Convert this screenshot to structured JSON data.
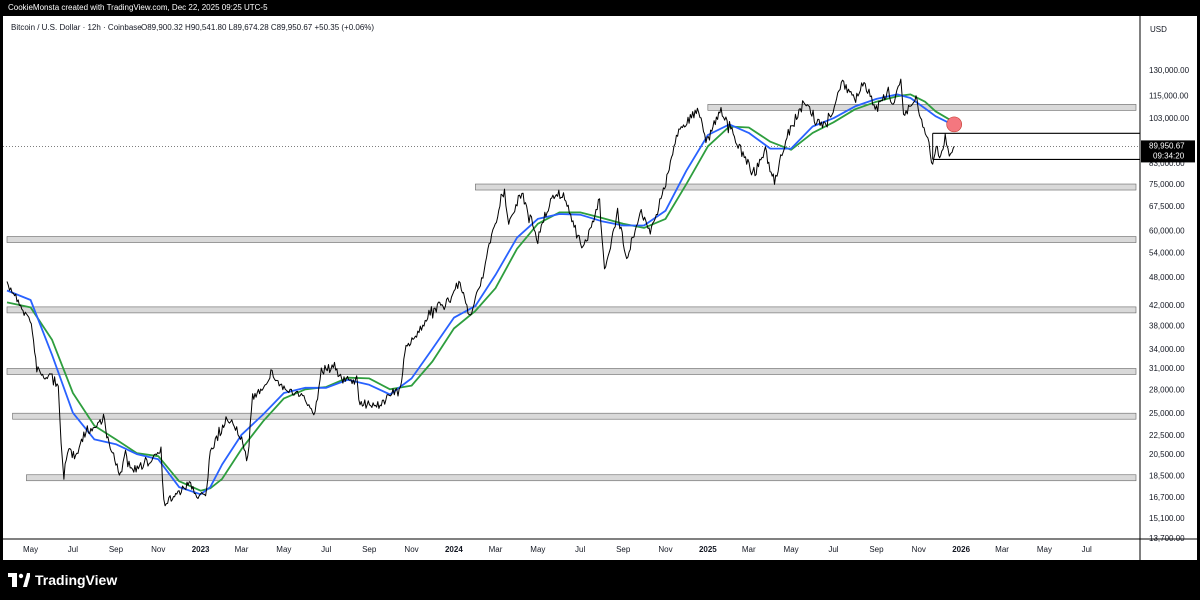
{
  "header": {
    "attribution": "CookieMonsta created with TradingView.com, Dec 22, 2025 09:25 UTC-5"
  },
  "legend": {
    "symbol_line": "Bitcoin / U.S. Dollar · 12h · Coinbase",
    "ohlc_line": "O89,900.32  H90,541.80  L89,674.28  C89,950.67  +50.35 (+0.06%)"
  },
  "price_axis": {
    "currency": "USD",
    "current_price_label": "89,950.67",
    "countdown_label": "09:34:20"
  },
  "footer": {
    "brand": "TradingView",
    "logo_icon": "tradingview-logo-icon"
  },
  "colors": {
    "price": "#000000",
    "ma_fast": "#2962ff",
    "ma_slow": "#2e9e3e",
    "zone_fill": "#d9d9d9",
    "marker": "#f4777f"
  },
  "chart_data": {
    "type": "line",
    "scale": "log",
    "ylim": [
      13700,
      150000
    ],
    "y_ticks": [
      {
        "label": "130,000.00",
        "value": 130000
      },
      {
        "label": "115,000.00",
        "value": 115000
      },
      {
        "label": "103,000.00",
        "value": 103000
      },
      {
        "label": "83,000.00",
        "value": 83000
      },
      {
        "label": "75,000.00",
        "value": 75000
      },
      {
        "label": "67,500.00",
        "value": 67500
      },
      {
        "label": "60,000.00",
        "value": 60000
      },
      {
        "label": "54,000.00",
        "value": 54000
      },
      {
        "label": "48,000.00",
        "value": 48000
      },
      {
        "label": "42,000.00",
        "value": 42000
      },
      {
        "label": "38,000.00",
        "value": 38000
      },
      {
        "label": "34,000.00",
        "value": 34000
      },
      {
        "label": "31,000.00",
        "value": 31000
      },
      {
        "label": "28,000.00",
        "value": 28000
      },
      {
        "label": "25,000.00",
        "value": 25000
      },
      {
        "label": "22,500.00",
        "value": 22500
      },
      {
        "label": "20,500.00",
        "value": 20500
      },
      {
        "label": "18,500.00",
        "value": 18500
      },
      {
        "label": "16,700.00",
        "value": 16700
      },
      {
        "label": "15,100.00",
        "value": 15100
      },
      {
        "label": "13,700.00",
        "value": 13700
      }
    ],
    "x_ticks": [
      {
        "label": "May",
        "date": "2022-05-01",
        "bold": false
      },
      {
        "label": "Jul",
        "date": "2022-07-01",
        "bold": false
      },
      {
        "label": "Sep",
        "date": "2022-09-01",
        "bold": false
      },
      {
        "label": "Nov",
        "date": "2022-11-01",
        "bold": false
      },
      {
        "label": "2023",
        "date": "2023-01-01",
        "bold": true
      },
      {
        "label": "Mar",
        "date": "2023-03-01",
        "bold": false
      },
      {
        "label": "May",
        "date": "2023-05-01",
        "bold": false
      },
      {
        "label": "Jul",
        "date": "2023-07-01",
        "bold": false
      },
      {
        "label": "Sep",
        "date": "2023-09-01",
        "bold": false
      },
      {
        "label": "Nov",
        "date": "2023-11-01",
        "bold": false
      },
      {
        "label": "2024",
        "date": "2024-01-01",
        "bold": true
      },
      {
        "label": "Mar",
        "date": "2024-03-01",
        "bold": false
      },
      {
        "label": "May",
        "date": "2024-05-01",
        "bold": false
      },
      {
        "label": "Jul",
        "date": "2024-07-01",
        "bold": false
      },
      {
        "label": "Sep",
        "date": "2024-09-01",
        "bold": false
      },
      {
        "label": "Nov",
        "date": "2024-11-01",
        "bold": false
      },
      {
        "label": "2025",
        "date": "2025-01-01",
        "bold": true
      },
      {
        "label": "Mar",
        "date": "2025-03-01",
        "bold": false
      },
      {
        "label": "May",
        "date": "2025-05-01",
        "bold": false
      },
      {
        "label": "Jul",
        "date": "2025-07-01",
        "bold": false
      },
      {
        "label": "Sep",
        "date": "2025-09-01",
        "bold": false
      },
      {
        "label": "Nov",
        "date": "2025-11-01",
        "bold": false
      },
      {
        "label": "2026",
        "date": "2026-01-01",
        "bold": true
      },
      {
        "label": "Mar",
        "date": "2026-03-01",
        "bold": false
      },
      {
        "label": "May",
        "date": "2026-05-01",
        "bold": false
      },
      {
        "label": "Jul",
        "date": "2026-07-01",
        "bold": false
      }
    ],
    "xlim": [
      "2022-03-28",
      "2026-09-10"
    ],
    "series": [
      {
        "key": "price",
        "points": [
          [
            "2022-03-28",
            46000
          ],
          [
            "2022-04-08",
            44500
          ],
          [
            "2022-04-20",
            41000
          ],
          [
            "2022-05-02",
            38500
          ],
          [
            "2022-05-10",
            31000
          ],
          [
            "2022-05-20",
            29500
          ],
          [
            "2022-06-01",
            30000
          ],
          [
            "2022-06-10",
            28000
          ],
          [
            "2022-06-14",
            22000
          ],
          [
            "2022-06-18",
            18500
          ],
          [
            "2022-06-25",
            21000
          ],
          [
            "2022-07-05",
            20000
          ],
          [
            "2022-07-20",
            23000
          ],
          [
            "2022-08-01",
            23200
          ],
          [
            "2022-08-14",
            24500
          ],
          [
            "2022-08-22",
            21400
          ],
          [
            "2022-09-06",
            18800
          ],
          [
            "2022-09-13",
            20200
          ],
          [
            "2022-09-25",
            19000
          ],
          [
            "2022-10-10",
            19200
          ],
          [
            "2022-10-28",
            20500
          ],
          [
            "2022-11-05",
            21200
          ],
          [
            "2022-11-09",
            16200
          ],
          [
            "2022-11-18",
            16500
          ],
          [
            "2022-12-01",
            17000
          ],
          [
            "2022-12-14",
            17800
          ],
          [
            "2022-12-30",
            16600
          ],
          [
            "2023-01-10",
            17400
          ],
          [
            "2023-01-15",
            20800
          ],
          [
            "2023-01-31",
            23100
          ],
          [
            "2023-02-15",
            24300
          ],
          [
            "2023-03-10",
            20200
          ],
          [
            "2023-03-17",
            26800
          ],
          [
            "2023-04-01",
            28400
          ],
          [
            "2023-04-14",
            30400
          ],
          [
            "2023-04-26",
            28500
          ],
          [
            "2023-05-10",
            27600
          ],
          [
            "2023-05-28",
            26900
          ],
          [
            "2023-06-15",
            25100
          ],
          [
            "2023-06-24",
            30600
          ],
          [
            "2023-07-13",
            31200
          ],
          [
            "2023-07-25",
            29200
          ],
          [
            "2023-08-14",
            29300
          ],
          [
            "2023-08-17",
            26200
          ],
          [
            "2023-09-10",
            25800
          ],
          [
            "2023-09-30",
            27000
          ],
          [
            "2023-10-16",
            28500
          ],
          [
            "2023-10-24",
            34000
          ],
          [
            "2023-11-10",
            36800
          ],
          [
            "2023-12-05",
            42000
          ],
          [
            "2023-12-18",
            41500
          ],
          [
            "2024-01-10",
            46500
          ],
          [
            "2024-01-23",
            39500
          ],
          [
            "2024-02-10",
            47500
          ],
          [
            "2024-02-28",
            61000
          ],
          [
            "2024-03-14",
            72500
          ],
          [
            "2024-03-20",
            62500
          ],
          [
            "2024-04-08",
            71500
          ],
          [
            "2024-04-20",
            64000
          ],
          [
            "2024-05-01",
            57500
          ],
          [
            "2024-05-21",
            71000
          ],
          [
            "2024-06-07",
            71500
          ],
          [
            "2024-06-24",
            60500
          ],
          [
            "2024-07-05",
            54500
          ],
          [
            "2024-07-29",
            69500
          ],
          [
            "2024-08-05",
            50000
          ],
          [
            "2024-08-24",
            64500
          ],
          [
            "2024-09-06",
            53000
          ],
          [
            "2024-09-27",
            66000
          ],
          [
            "2024-10-10",
            59000
          ],
          [
            "2024-10-29",
            72500
          ],
          [
            "2024-11-13",
            89500
          ],
          [
            "2024-11-22",
            99000
          ],
          [
            "2024-12-05",
            102000
          ],
          [
            "2024-12-17",
            107000
          ],
          [
            "2024-12-31",
            93500
          ],
          [
            "2025-01-20",
            107500
          ],
          [
            "2025-02-03",
            97500
          ],
          [
            "2025-02-26",
            83500
          ],
          [
            "2025-03-10",
            79000
          ],
          [
            "2025-03-25",
            88500
          ],
          [
            "2025-04-07",
            76000
          ],
          [
            "2025-04-25",
            95000
          ],
          [
            "2025-05-21",
            111000
          ],
          [
            "2025-06-05",
            101500
          ],
          [
            "2025-06-22",
            100000
          ],
          [
            "2025-07-14",
            122000
          ],
          [
            "2025-08-02",
            112500
          ],
          [
            "2025-08-14",
            123500
          ],
          [
            "2025-09-01",
            107500
          ],
          [
            "2025-09-18",
            117000
          ],
          [
            "2025-09-25",
            109000
          ],
          [
            "2025-10-06",
            126000
          ],
          [
            "2025-10-10",
            104500
          ],
          [
            "2025-10-28",
            113500
          ],
          [
            "2025-11-05",
            101000
          ],
          [
            "2025-11-14",
            94500
          ],
          [
            "2025-11-21",
            81500
          ],
          [
            "2025-11-26",
            91500
          ],
          [
            "2025-12-01",
            85500
          ],
          [
            "2025-12-09",
            94000
          ],
          [
            "2025-12-15",
            86000
          ],
          [
            "2025-12-19",
            88000
          ],
          [
            "2025-12-22",
            89950
          ]
        ]
      },
      {
        "key": "ma_fast",
        "points": [
          [
            "2022-03-28",
            45000
          ],
          [
            "2022-05-01",
            43000
          ],
          [
            "2022-06-01",
            33000
          ],
          [
            "2022-07-01",
            25000
          ],
          [
            "2022-08-01",
            22000
          ],
          [
            "2022-09-01",
            21500
          ],
          [
            "2022-10-01",
            20500
          ],
          [
            "2022-11-01",
            20000
          ],
          [
            "2022-12-01",
            17500
          ],
          [
            "2023-01-01",
            16900
          ],
          [
            "2023-01-15",
            17500
          ],
          [
            "2023-02-01",
            19500
          ],
          [
            "2023-03-01",
            22500
          ],
          [
            "2023-04-01",
            24800
          ],
          [
            "2023-05-01",
            27500
          ],
          [
            "2023-06-01",
            28200
          ],
          [
            "2023-07-01",
            28200
          ],
          [
            "2023-08-01",
            29300
          ],
          [
            "2023-09-01",
            28600
          ],
          [
            "2023-10-01",
            27300
          ],
          [
            "2023-11-01",
            29500
          ],
          [
            "2023-12-01",
            34000
          ],
          [
            "2024-01-01",
            39500
          ],
          [
            "2024-02-01",
            41800
          ],
          [
            "2024-03-01",
            48500
          ],
          [
            "2024-04-01",
            58000
          ],
          [
            "2024-05-01",
            63500
          ],
          [
            "2024-06-01",
            65000
          ],
          [
            "2024-07-01",
            64800
          ],
          [
            "2024-08-01",
            62800
          ],
          [
            "2024-09-01",
            61500
          ],
          [
            "2024-10-01",
            61500
          ],
          [
            "2024-11-01",
            66000
          ],
          [
            "2024-12-01",
            80000
          ],
          [
            "2025-01-01",
            95000
          ],
          [
            "2025-02-01",
            100000
          ],
          [
            "2025-03-01",
            96000
          ],
          [
            "2025-04-01",
            89000
          ],
          [
            "2025-05-01",
            89000
          ],
          [
            "2025-06-01",
            99000
          ],
          [
            "2025-07-01",
            103000
          ],
          [
            "2025-08-01",
            109000
          ],
          [
            "2025-09-01",
            113000
          ],
          [
            "2025-10-01",
            115500
          ],
          [
            "2025-10-20",
            113500
          ],
          [
            "2025-11-10",
            108000
          ],
          [
            "2025-11-25",
            104000
          ],
          [
            "2025-12-22",
            99500
          ]
        ]
      },
      {
        "key": "ma_slow",
        "points": [
          [
            "2022-03-28",
            42500
          ],
          [
            "2022-05-01",
            41500
          ],
          [
            "2022-06-01",
            35500
          ],
          [
            "2022-07-01",
            27500
          ],
          [
            "2022-08-01",
            23500
          ],
          [
            "2022-09-01",
            22000
          ],
          [
            "2022-10-01",
            20600
          ],
          [
            "2022-11-01",
            20300
          ],
          [
            "2022-12-01",
            18000
          ],
          [
            "2023-01-01",
            17200
          ],
          [
            "2023-01-15",
            17400
          ],
          [
            "2023-02-01",
            18200
          ],
          [
            "2023-03-01",
            21000
          ],
          [
            "2023-04-01",
            24000
          ],
          [
            "2023-05-01",
            26800
          ],
          [
            "2023-06-01",
            28000
          ],
          [
            "2023-07-01",
            28300
          ],
          [
            "2023-08-01",
            29600
          ],
          [
            "2023-09-01",
            29500
          ],
          [
            "2023-10-01",
            28000
          ],
          [
            "2023-11-01",
            28500
          ],
          [
            "2023-12-01",
            32000
          ],
          [
            "2024-01-01",
            37500
          ],
          [
            "2024-02-01",
            40800
          ],
          [
            "2024-03-01",
            45500
          ],
          [
            "2024-04-01",
            55000
          ],
          [
            "2024-05-01",
            62000
          ],
          [
            "2024-06-01",
            65500
          ],
          [
            "2024-07-01",
            65500
          ],
          [
            "2024-08-01",
            63800
          ],
          [
            "2024-09-01",
            62000
          ],
          [
            "2024-10-01",
            60800
          ],
          [
            "2024-11-01",
            63500
          ],
          [
            "2024-12-01",
            75000
          ],
          [
            "2025-01-01",
            90000
          ],
          [
            "2025-02-01",
            99000
          ],
          [
            "2025-03-01",
            98500
          ],
          [
            "2025-04-01",
            92000
          ],
          [
            "2025-05-01",
            88500
          ],
          [
            "2025-06-01",
            96000
          ],
          [
            "2025-07-01",
            101000
          ],
          [
            "2025-08-01",
            107500
          ],
          [
            "2025-09-01",
            111500
          ],
          [
            "2025-10-01",
            114500
          ],
          [
            "2025-10-20",
            115500
          ],
          [
            "2025-11-10",
            111500
          ],
          [
            "2025-11-25",
            106500
          ],
          [
            "2025-12-22",
            101000
          ]
        ]
      }
    ],
    "zones": [
      {
        "from": "2025-01-01",
        "y": 108500
      },
      {
        "from": "2024-02-01",
        "y": 74000
      },
      {
        "from": "2022-03-28",
        "y": 57500
      },
      {
        "from": "2022-03-28",
        "y": 41000
      },
      {
        "from": "2022-03-28",
        "y": 30500
      },
      {
        "from": "2022-04-05",
        "y": 24600
      },
      {
        "from": "2022-04-25",
        "y": 18300
      }
    ],
    "box_lines": [
      {
        "from": "2025-11-21",
        "y": 95800
      },
      {
        "from": "2025-11-21",
        "y": 84500
      }
    ],
    "marker_point": {
      "date": "2025-12-22",
      "value": 100000
    },
    "current_price": 89950.67
  }
}
